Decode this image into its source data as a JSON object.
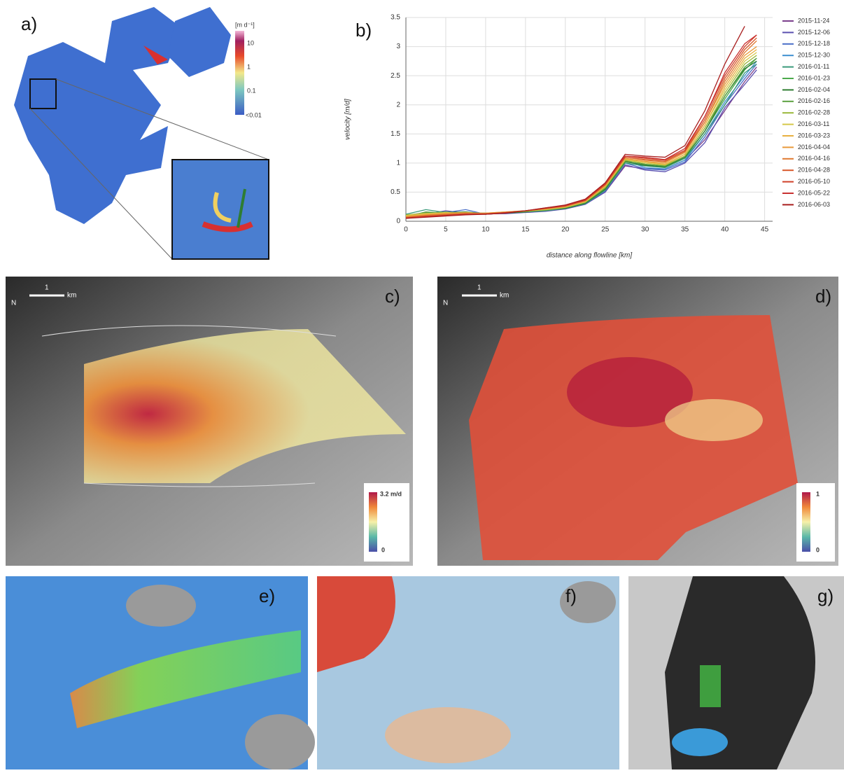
{
  "chart_data": {
    "type": "line",
    "x_label": "distance along flowline [km]",
    "y_label": "velocity [m/d]",
    "x": [
      0,
      2.5,
      5,
      7.5,
      10,
      12.5,
      15,
      17.5,
      20,
      22.5,
      25,
      27.5,
      30,
      32.5,
      35,
      37.5,
      40,
      42.5,
      44
    ],
    "xlim": [
      0,
      46
    ],
    "xticks": [
      0,
      5,
      10,
      15,
      20,
      25,
      30,
      35,
      40,
      45
    ],
    "ylim": [
      0,
      3.5
    ],
    "yticks": [
      0,
      0.5,
      1,
      1.5,
      2,
      2.5,
      3,
      3.5
    ],
    "grid": true,
    "legend": "right",
    "series": [
      {
        "name": "2015-11-24",
        "color": "#7b3f8c",
        "values": [
          0.1,
          0.15,
          0.14,
          0.15,
          0.12,
          0.14,
          0.16,
          0.18,
          0.22,
          0.3,
          0.5,
          0.95,
          0.9,
          0.9,
          1.05,
          1.4,
          1.9,
          2.4,
          2.65
        ]
      },
      {
        "name": "2015-12-06",
        "color": "#5a4fb0",
        "values": [
          0.08,
          0.12,
          0.18,
          0.14,
          0.13,
          0.13,
          0.15,
          0.17,
          0.21,
          0.29,
          0.5,
          0.97,
          0.88,
          0.85,
          1.0,
          1.35,
          1.95,
          2.35,
          2.6
        ]
      },
      {
        "name": "2015-12-18",
        "color": "#4a6fc8",
        "values": [
          0.05,
          0.1,
          0.15,
          0.2,
          0.12,
          0.14,
          0.16,
          0.19,
          0.22,
          0.3,
          0.52,
          1.0,
          0.9,
          0.88,
          1.02,
          1.45,
          2.0,
          2.45,
          2.7
        ]
      },
      {
        "name": "2015-12-30",
        "color": "#3d8fd0",
        "values": [
          0.07,
          0.12,
          0.13,
          0.15,
          0.14,
          0.15,
          0.17,
          0.2,
          0.23,
          0.31,
          0.55,
          1.05,
          0.92,
          0.9,
          1.05,
          1.5,
          2.05,
          2.5,
          2.75
        ]
      },
      {
        "name": "2016-01-11",
        "color": "#3a9a7a",
        "values": [
          0.12,
          0.2,
          0.15,
          0.12,
          0.13,
          0.14,
          0.16,
          0.18,
          0.22,
          0.3,
          0.53,
          1.0,
          0.95,
          0.92,
          1.08,
          1.5,
          2.0,
          2.55,
          2.7
        ]
      },
      {
        "name": "2016-01-23",
        "color": "#4caa4c",
        "values": [
          0.1,
          0.14,
          0.16,
          0.14,
          0.12,
          0.15,
          0.17,
          0.19,
          0.23,
          0.32,
          0.56,
          1.02,
          0.97,
          0.93,
          1.1,
          1.55,
          2.1,
          2.6,
          2.8
        ]
      },
      {
        "name": "2016-02-04",
        "color": "#2e7d32",
        "values": [
          0.09,
          0.13,
          0.15,
          0.16,
          0.13,
          0.14,
          0.16,
          0.2,
          0.22,
          0.31,
          0.55,
          1.03,
          0.96,
          0.94,
          1.1,
          1.55,
          2.15,
          2.62,
          2.75
        ]
      },
      {
        "name": "2016-02-16",
        "color": "#5ba040",
        "values": [
          0.08,
          0.16,
          0.14,
          0.13,
          0.14,
          0.15,
          0.17,
          0.19,
          0.23,
          0.32,
          0.57,
          1.05,
          0.98,
          0.95,
          1.12,
          1.6,
          2.15,
          2.65,
          2.8
        ]
      },
      {
        "name": "2016-02-28",
        "color": "#9ab83a",
        "values": [
          0.11,
          0.14,
          0.12,
          0.15,
          0.13,
          0.15,
          0.17,
          0.2,
          0.24,
          0.33,
          0.58,
          1.04,
          1.0,
          0.96,
          1.12,
          1.6,
          2.2,
          2.7,
          2.85
        ]
      },
      {
        "name": "2016-03-11",
        "color": "#d6c84a",
        "values": [
          0.1,
          0.13,
          0.15,
          0.14,
          0.14,
          0.16,
          0.18,
          0.2,
          0.24,
          0.33,
          0.6,
          1.06,
          1.0,
          0.97,
          1.15,
          1.65,
          2.25,
          2.75,
          2.9
        ]
      },
      {
        "name": "2016-03-23",
        "color": "#e8b040",
        "values": [
          0.09,
          0.12,
          0.14,
          0.15,
          0.13,
          0.15,
          0.18,
          0.21,
          0.25,
          0.34,
          0.6,
          1.07,
          1.02,
          0.98,
          1.15,
          1.65,
          2.3,
          2.8,
          2.95
        ]
      },
      {
        "name": "2016-04-04",
        "color": "#e89a3a",
        "values": [
          0.08,
          0.11,
          0.13,
          0.14,
          0.14,
          0.16,
          0.18,
          0.21,
          0.25,
          0.35,
          0.62,
          1.08,
          1.03,
          1.0,
          1.18,
          1.7,
          2.35,
          2.85,
          3.0
        ]
      },
      {
        "name": "2016-04-16",
        "color": "#e07a30",
        "values": [
          0.07,
          0.1,
          0.12,
          0.13,
          0.13,
          0.15,
          0.18,
          0.22,
          0.26,
          0.35,
          0.62,
          1.1,
          1.05,
          1.02,
          1.2,
          1.7,
          2.4,
          2.9,
          3.1
        ]
      },
      {
        "name": "2016-04-28",
        "color": "#d8582a",
        "values": [
          0.06,
          0.09,
          0.11,
          0.13,
          0.13,
          0.15,
          0.18,
          0.22,
          0.26,
          0.36,
          0.63,
          1.1,
          1.06,
          1.03,
          1.2,
          1.75,
          2.45,
          2.95,
          3.15
        ]
      },
      {
        "name": "2016-05-10",
        "color": "#d04028",
        "values": [
          0.06,
          0.08,
          0.1,
          0.12,
          0.12,
          0.15,
          0.18,
          0.22,
          0.27,
          0.36,
          0.64,
          1.12,
          1.08,
          1.05,
          1.22,
          1.8,
          2.5,
          3.0,
          3.2
        ]
      },
      {
        "name": "2016-05-22",
        "color": "#c83030",
        "values": [
          0.05,
          0.08,
          0.1,
          0.12,
          0.12,
          0.14,
          0.18,
          0.23,
          0.27,
          0.37,
          0.65,
          1.12,
          1.1,
          1.06,
          1.25,
          1.8,
          2.55,
          3.05,
          3.2
        ]
      },
      {
        "name": "2016-06-03",
        "color": "#a81e1e",
        "values": [
          0.05,
          0.07,
          0.09,
          0.11,
          0.12,
          0.14,
          0.18,
          0.23,
          0.28,
          0.38,
          0.66,
          1.15,
          1.12,
          1.1,
          1.3,
          1.9,
          2.7,
          3.35,
          null
        ]
      }
    ]
  },
  "panels": {
    "a": {
      "label": "a)",
      "colorbar": {
        "unit": "[m d⁻¹]",
        "ticks": [
          "10",
          "1",
          "0.1",
          "<0.01"
        ]
      }
    },
    "b": {
      "label": "b)"
    },
    "c": {
      "label": "c)",
      "north": "N",
      "scale": "1",
      "scale_unit": "km",
      "colorbar": {
        "max": "3.2 m/d",
        "min": "0"
      }
    },
    "d": {
      "label": "d)",
      "north": "N",
      "scale": "1",
      "scale_unit": "km",
      "colorbar": {
        "max": "1",
        "min": "0"
      }
    },
    "e": {
      "label": "e)"
    },
    "f": {
      "label": "f)"
    },
    "g": {
      "label": "g)"
    }
  }
}
